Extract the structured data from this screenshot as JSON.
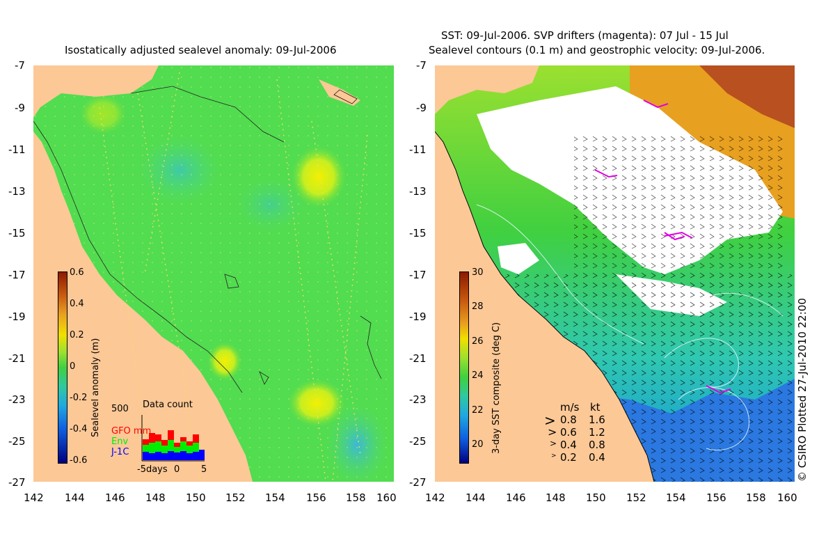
{
  "left_panel": {
    "title": "Isostatically adjusted sealevel anomaly: 09-Jul-2006",
    "colorbar": {
      "label": "Sealevel anomaly (m)",
      "ticks": [
        "0.6",
        "0.4",
        "0.2",
        "0",
        "-0.2",
        "-0.4",
        "-0.6"
      ],
      "range": [
        -0.6,
        0.6
      ]
    },
    "data_count": {
      "title": "Data count",
      "max_label": "500",
      "legend": [
        {
          "label": "GFO mm",
          "color": "#ff0000"
        },
        {
          "label": "Env",
          "color": "#00ee00"
        },
        {
          "label": "J-1C",
          "color": "#0000ff"
        }
      ],
      "x_ticks": [
        "-5days",
        "0",
        "5"
      ]
    }
  },
  "right_panel": {
    "title_line1": "SST: 09-Jul-2006. SVP drifters (magenta): 07 Jul - 15 Jul",
    "title_line2": "Sealevel contours (0.1 m) and geostrophic velocity: 09-Jul-2006.",
    "colorbar": {
      "label": "3-day SST composite (deg C)",
      "ticks": [
        "30",
        "28",
        "26",
        "24",
        "22",
        "20"
      ],
      "range": [
        19,
        30
      ]
    },
    "velocity_legend": {
      "header_ms": "m/s",
      "header_kt": "kt",
      "rows": [
        {
          "ms": "0.8",
          "kt": "1.6"
        },
        {
          "ms": "0.6",
          "kt": "1.2"
        },
        {
          "ms": "0.4",
          "kt": "0.8"
        },
        {
          "ms": "0.2",
          "kt": "0.4"
        }
      ]
    }
  },
  "axes": {
    "lat_ticks": [
      "-7",
      "-9",
      "-11",
      "-13",
      "-15",
      "-17",
      "-19",
      "-21",
      "-23",
      "-25",
      "-27"
    ],
    "lon_ticks": [
      "142",
      "144",
      "146",
      "148",
      "150",
      "152",
      "154",
      "156",
      "158",
      "160"
    ]
  },
  "credit": "© CSIRO Plotted 27-Jul-2010 22:00",
  "colors": {
    "land": "#fcc896",
    "ocean_green": "#4ee048",
    "cloud": "#ffffff"
  }
}
